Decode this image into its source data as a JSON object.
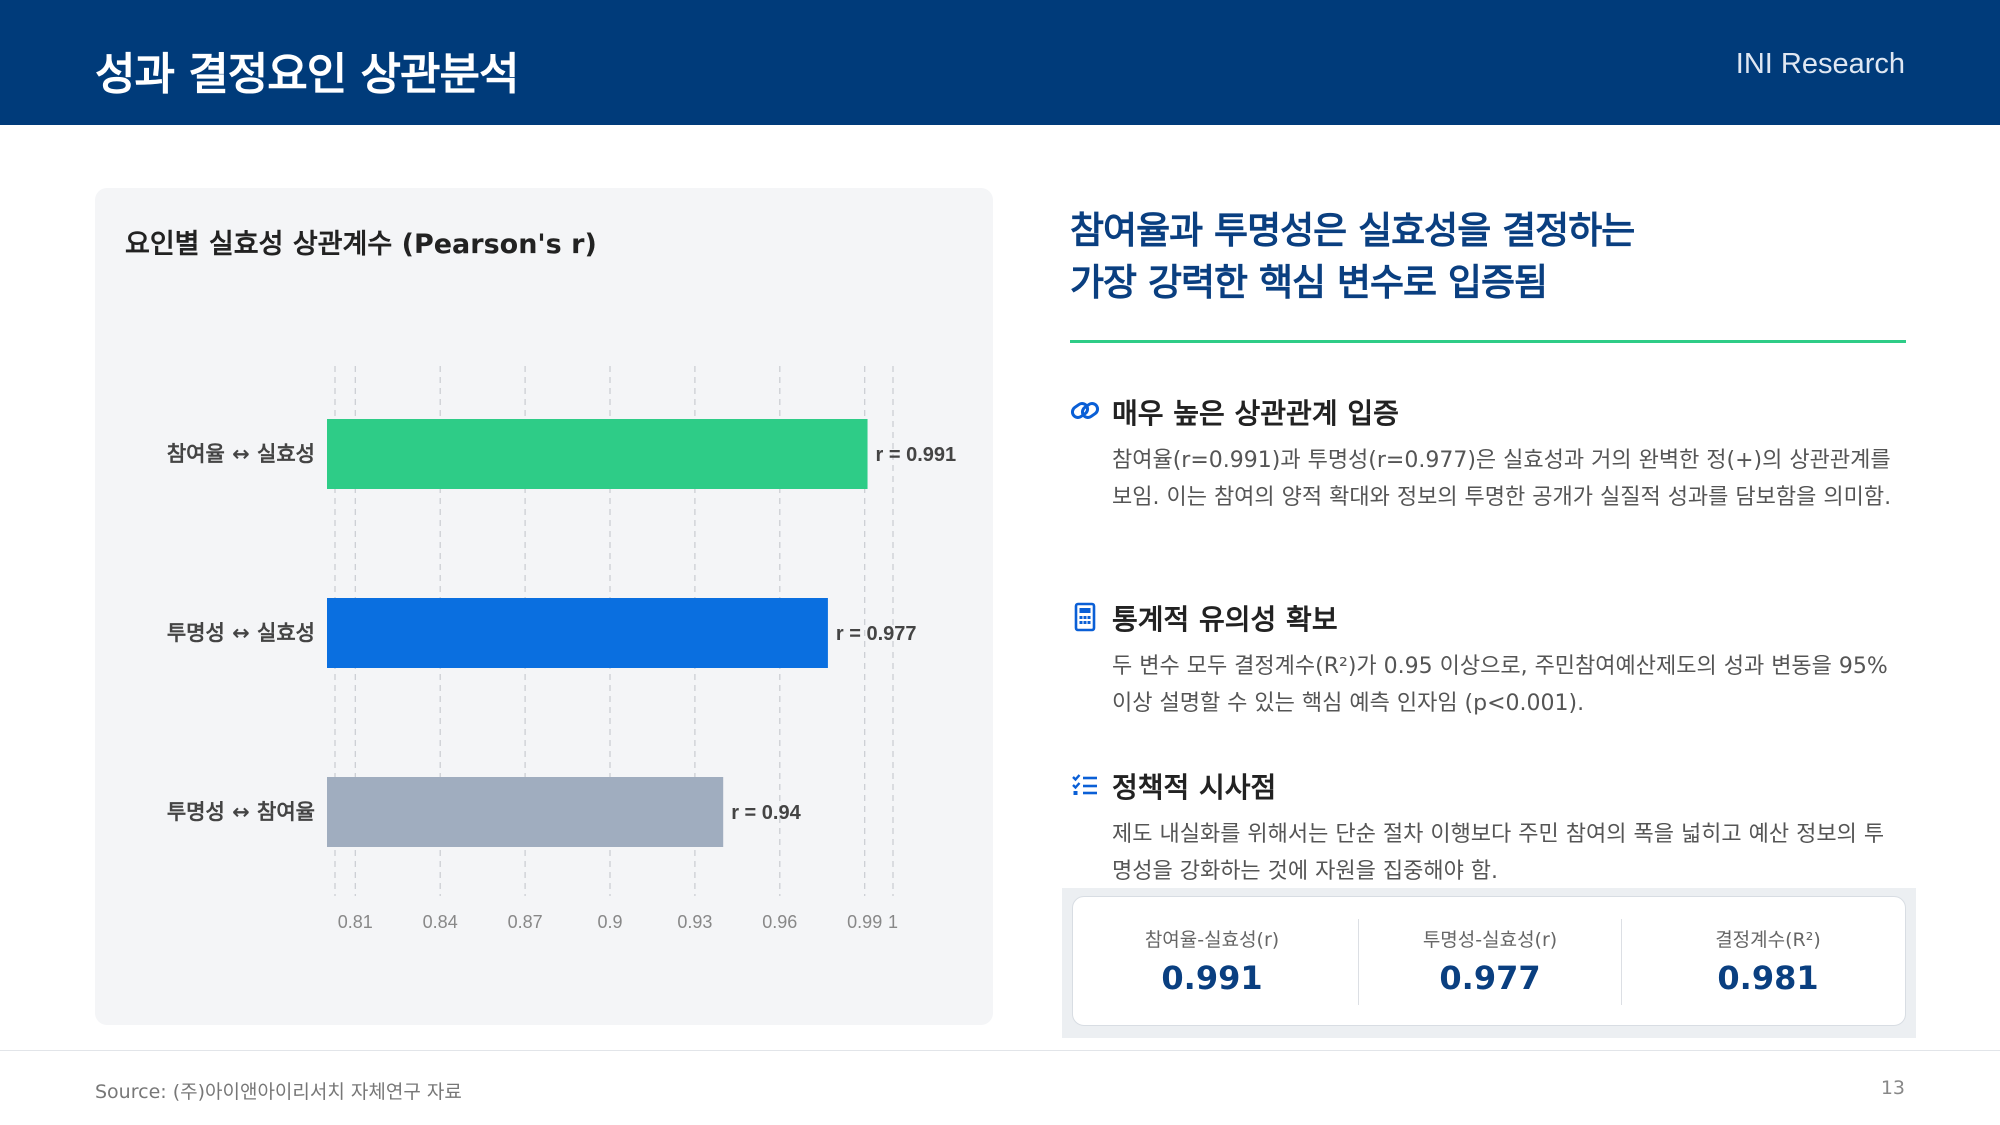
{
  "header": {
    "title": "성과 결정요인 상관분석",
    "brand": "INI Research"
  },
  "chart_panel": {
    "title": "요인별 실효성 상관계수 (Pearson's r)"
  },
  "chart_data": {
    "type": "bar",
    "orientation": "horizontal",
    "categories": [
      "참여율 ↔ 실효성",
      "투명성 ↔ 실효성",
      "투명성 ↔ 참여율"
    ],
    "values": [
      0.991,
      0.977,
      0.94
    ],
    "data_labels": [
      "r = 0.991",
      "r = 0.977",
      "r = 0.94"
    ],
    "colors": [
      "#2ecc87",
      "#0a6fe0",
      "#a0adbf"
    ],
    "xlim": [
      0.8,
      1.0
    ],
    "xticks": [
      0.81,
      0.84,
      0.87,
      0.9,
      0.93,
      0.96,
      0.99,
      1
    ],
    "xtick_labels": [
      "0.81",
      "0.84",
      "0.87",
      "0.9",
      "0.93",
      "0.96",
      "0.99",
      "1"
    ],
    "grid": true
  },
  "right": {
    "heading_line1": "참여율과 투명성은 실효성을 결정하는",
    "heading_line2": "가장 강력한 핵심 변수로 입증됨",
    "sections": [
      {
        "icon": "link-icon",
        "title": "매우 높은 상관관계 입증",
        "body": "참여율(r=0.991)과 투명성(r=0.977)은 실효성과 거의 완벽한 정(+)의 상관관계를 보임. 이는 참여의 양적 확대와 정보의 투명한 공개가 실질적 성과를 담보함을 의미함."
      },
      {
        "icon": "calculator-icon",
        "title": "통계적 유의성 확보",
        "body": "두 변수 모두 결정계수(R²)가 0.95 이상으로, 주민참여예산제도의 성과 변동을 95% 이상 설명할 수 있는 핵심 예측 인자임 (p<0.001)."
      },
      {
        "icon": "checklist-icon",
        "title": "정책적 시사점",
        "body": "제도 내실화를 위해서는 단순 절차 이행보다 주민 참여의 폭을 넓히고 예산 정보의 투명성을 강화하는 것에 자원을 집중해야 함."
      }
    ]
  },
  "metrics": [
    {
      "label": "참여율-실효성(r)",
      "value": "0.991"
    },
    {
      "label": "투명성-실효성(r)",
      "value": "0.977"
    },
    {
      "label": "결정계수(R²)",
      "value": "0.981"
    }
  ],
  "footer": {
    "source": "Source: (주)아이앤아이리서치 자체연구 자료",
    "page": "13"
  }
}
